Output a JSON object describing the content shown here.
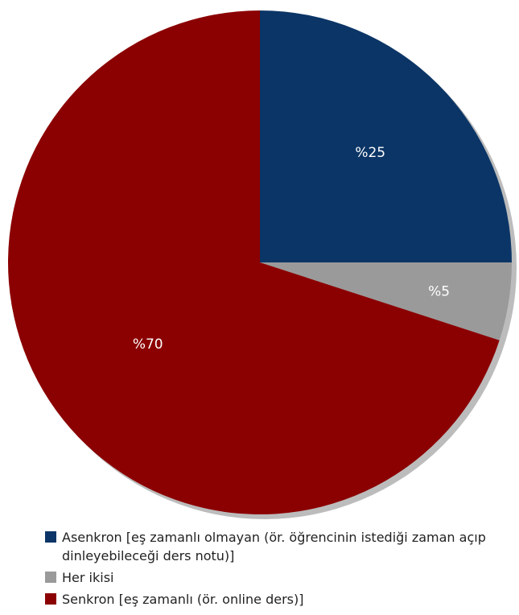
{
  "chart_data": {
    "type": "pie",
    "slices": [
      {
        "name": "Asenkron [eş zamanlı olmayan (ör. öğrencinin istediği zaman açıp dinleyebileceği ders notu)]",
        "value": 25,
        "label": "%25",
        "color": "#0b3566"
      },
      {
        "name": "Her ikisi",
        "value": 5,
        "label": "%5",
        "color": "#9a9a9a"
      },
      {
        "name": "Senkron [eş zamanlı (ör. online ders)]",
        "value": 70,
        "label": "%70",
        "color": "#8b0000"
      }
    ],
    "start_angle": "12 o'clock",
    "direction": "clockwise",
    "shadow_color": "#bcbcbc",
    "legend_position": "bottom-left"
  }
}
